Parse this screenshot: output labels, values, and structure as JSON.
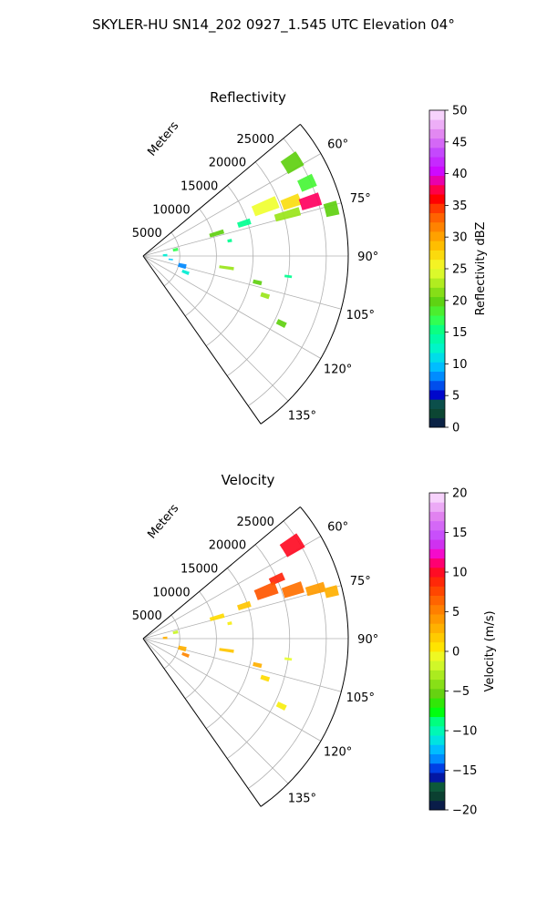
{
  "figure": {
    "title": "SKYLER-HU  SN14_202  0927_1.545 UTC Elevation 04°"
  },
  "chart_data": [
    {
      "type": "heatmap",
      "projection": "polar-sector",
      "title": "Reflectivity",
      "radial_label": "Meters",
      "range_max": 28000,
      "range_ticks": [
        5000,
        10000,
        15000,
        20000,
        25000
      ],
      "range_tick_labels": [
        "5000",
        "10000",
        "15000",
        "20000",
        "25000"
      ],
      "azimuth_range": [
        50,
        145
      ],
      "azimuth_ticks": [
        60,
        75,
        90,
        105,
        120,
        135
      ],
      "azimuth_tick_labels": [
        "60°",
        "75°",
        "90°",
        "105°",
        "120°",
        "135°"
      ],
      "grid": true,
      "colorbar": {
        "label": "Reflectivity dBZ",
        "min": 0,
        "max": 50,
        "ticks": [
          0,
          5,
          10,
          15,
          20,
          25,
          30,
          35,
          40,
          45,
          50
        ],
        "tick_labels": [
          "0",
          "5",
          "10",
          "15",
          "20",
          "25",
          "30",
          "35",
          "40",
          "45",
          "50"
        ],
        "stops": [
          {
            "v": 0,
            "c": "#0a0a5a"
          },
          {
            "v": 1.5,
            "c": "#0b3b2f"
          },
          {
            "v": 3.5,
            "c": "#0d5a3a"
          },
          {
            "v": 5,
            "c": "#0000c8"
          },
          {
            "v": 7.5,
            "c": "#0078ff"
          },
          {
            "v": 10,
            "c": "#00ccff"
          },
          {
            "v": 12.5,
            "c": "#00f5c8"
          },
          {
            "v": 15,
            "c": "#00ff90"
          },
          {
            "v": 17.5,
            "c": "#40ff40"
          },
          {
            "v": 20,
            "c": "#60d010"
          },
          {
            "v": 22,
            "c": "#9ae51a"
          },
          {
            "v": 25,
            "c": "#f0ff30"
          },
          {
            "v": 28,
            "c": "#ffcc00"
          },
          {
            "v": 31,
            "c": "#ff9000"
          },
          {
            "v": 34,
            "c": "#ff5000"
          },
          {
            "v": 36,
            "c": "#ff0000"
          },
          {
            "v": 38,
            "c": "#ff0060"
          },
          {
            "v": 40,
            "c": "#d000ff"
          },
          {
            "v": 43,
            "c": "#c040ff"
          },
          {
            "v": 46,
            "c": "#e080f0"
          },
          {
            "v": 50,
            "c": "#fce6ff"
          }
        ]
      },
      "echoes": [
        {
          "az": 58,
          "r": 24000,
          "dr": 2500,
          "da": 5,
          "value": 20
        },
        {
          "az": 66,
          "r": 24500,
          "dr": 2200,
          "da": 4,
          "value": 18
        },
        {
          "az": 68,
          "r": 18000,
          "dr": 3500,
          "da": 5,
          "value": 25
        },
        {
          "az": 70,
          "r": 21500,
          "dr": 2600,
          "da": 4,
          "value": 27
        },
        {
          "az": 72,
          "r": 24000,
          "dr": 2800,
          "da": 4,
          "value": 38
        },
        {
          "az": 74,
          "r": 20500,
          "dr": 3500,
          "da": 3,
          "value": 22
        },
        {
          "az": 76,
          "r": 26500,
          "dr": 1800,
          "da": 4,
          "value": 20
        },
        {
          "az": 72,
          "r": 14500,
          "dr": 1800,
          "da": 3,
          "value": 15
        },
        {
          "az": 73,
          "r": 10500,
          "dr": 2000,
          "da": 3,
          "value": 20
        },
        {
          "az": 80,
          "r": 12000,
          "dr": 600,
          "da": 2,
          "value": 15
        },
        {
          "az": 79,
          "r": 4500,
          "dr": 700,
          "da": 5,
          "value": 17
        },
        {
          "az": 88,
          "r": 3000,
          "dr": 600,
          "da": 6,
          "value": 12
        },
        {
          "az": 97,
          "r": 3800,
          "dr": 600,
          "da": 3,
          "value": 10
        },
        {
          "az": 104,
          "r": 5500,
          "dr": 1100,
          "da": 6,
          "value": 8
        },
        {
          "az": 111,
          "r": 6200,
          "dr": 1000,
          "da": 4,
          "value": 12
        },
        {
          "az": 98,
          "r": 11500,
          "dr": 2000,
          "da": 2,
          "value": 22
        },
        {
          "az": 103,
          "r": 16000,
          "dr": 1200,
          "da": 2,
          "value": 20
        },
        {
          "az": 108,
          "r": 17500,
          "dr": 1200,
          "da": 2,
          "value": 22
        },
        {
          "az": 116,
          "r": 21000,
          "dr": 1300,
          "da": 2,
          "value": 20
        },
        {
          "az": 98,
          "r": 20000,
          "dr": 1000,
          "da": 1,
          "value": 15
        }
      ]
    },
    {
      "type": "heatmap",
      "projection": "polar-sector",
      "title": "Velocity",
      "radial_label": "Meters",
      "range_max": 28000,
      "range_ticks": [
        5000,
        10000,
        15000,
        20000,
        25000
      ],
      "range_tick_labels": [
        "5000",
        "10000",
        "15000",
        "20000",
        "25000"
      ],
      "azimuth_range": [
        50,
        145
      ],
      "azimuth_ticks": [
        60,
        75,
        90,
        105,
        120,
        135
      ],
      "azimuth_tick_labels": [
        "60°",
        "75°",
        "90°",
        "105°",
        "120°",
        "135°"
      ],
      "grid": true,
      "colorbar": {
        "label": "Velocity (m/s)",
        "min": -20,
        "max": 20,
        "ticks": [
          -20,
          -15,
          -10,
          -5,
          0,
          5,
          10,
          15,
          20
        ],
        "tick_labels": [
          "−20",
          "−15",
          "−10",
          "−5",
          "0",
          "5",
          "10",
          "15",
          "20"
        ],
        "stops": [
          {
            "v": -20,
            "c": "#0a0a5a"
          },
          {
            "v": -18.5,
            "c": "#0b3b2f"
          },
          {
            "v": -17,
            "c": "#0d5a3a"
          },
          {
            "v": -15.5,
            "c": "#0000c8"
          },
          {
            "v": -14,
            "c": "#0078ff"
          },
          {
            "v": -12,
            "c": "#00ccff"
          },
          {
            "v": -10.5,
            "c": "#00f5c8"
          },
          {
            "v": -9,
            "c": "#00ff90"
          },
          {
            "v": -7.5,
            "c": "#00ff00"
          },
          {
            "v": -5.5,
            "c": "#60d010"
          },
          {
            "v": -3.5,
            "c": "#9ae51a"
          },
          {
            "v": -1,
            "c": "#e8ff30"
          },
          {
            "v": 0.5,
            "c": "#ffe600"
          },
          {
            "v": 3,
            "c": "#ffb000"
          },
          {
            "v": 6,
            "c": "#ff7000"
          },
          {
            "v": 8.5,
            "c": "#ff3000"
          },
          {
            "v": 10.5,
            "c": "#ff0030"
          },
          {
            "v": 12,
            "c": "#ff00c0"
          },
          {
            "v": 14,
            "c": "#c040ff"
          },
          {
            "v": 17,
            "c": "#e080f0"
          },
          {
            "v": 20,
            "c": "#fce6ff"
          }
        ]
      },
      "echoes": [
        {
          "az": 58,
          "r": 24000,
          "dr": 2800,
          "da": 5,
          "value": 10
        },
        {
          "az": 66,
          "r": 20000,
          "dr": 2000,
          "da": 3,
          "value": 9
        },
        {
          "az": 69,
          "r": 18000,
          "dr": 3000,
          "da": 5,
          "value": 7
        },
        {
          "az": 72,
          "r": 21500,
          "dr": 2800,
          "da": 4,
          "value": 6
        },
        {
          "az": 74,
          "r": 24500,
          "dr": 2600,
          "da": 3,
          "value": 4
        },
        {
          "az": 76,
          "r": 26500,
          "dr": 1800,
          "da": 3,
          "value": 3
        },
        {
          "az": 72,
          "r": 14500,
          "dr": 1800,
          "da": 3,
          "value": 2
        },
        {
          "az": 74,
          "r": 10500,
          "dr": 2000,
          "da": 3,
          "value": 1
        },
        {
          "az": 80,
          "r": 12000,
          "dr": 600,
          "da": 2,
          "value": 0
        },
        {
          "az": 79,
          "r": 4500,
          "dr": 700,
          "da": 5,
          "value": -2
        },
        {
          "az": 88,
          "r": 3000,
          "dr": 600,
          "da": 6,
          "value": 3
        },
        {
          "az": 104,
          "r": 5500,
          "dr": 1100,
          "da": 6,
          "value": 3
        },
        {
          "az": 111,
          "r": 6200,
          "dr": 1000,
          "da": 4,
          "value": 5
        },
        {
          "az": 98,
          "r": 11500,
          "dr": 2000,
          "da": 2,
          "value": 2
        },
        {
          "az": 103,
          "r": 16000,
          "dr": 1200,
          "da": 2,
          "value": 3
        },
        {
          "az": 108,
          "r": 17500,
          "dr": 1200,
          "da": 2,
          "value": 1
        },
        {
          "az": 116,
          "r": 21000,
          "dr": 1300,
          "da": 2,
          "value": 0
        },
        {
          "az": 98,
          "r": 20000,
          "dr": 1000,
          "da": 1,
          "value": -1
        }
      ]
    }
  ]
}
